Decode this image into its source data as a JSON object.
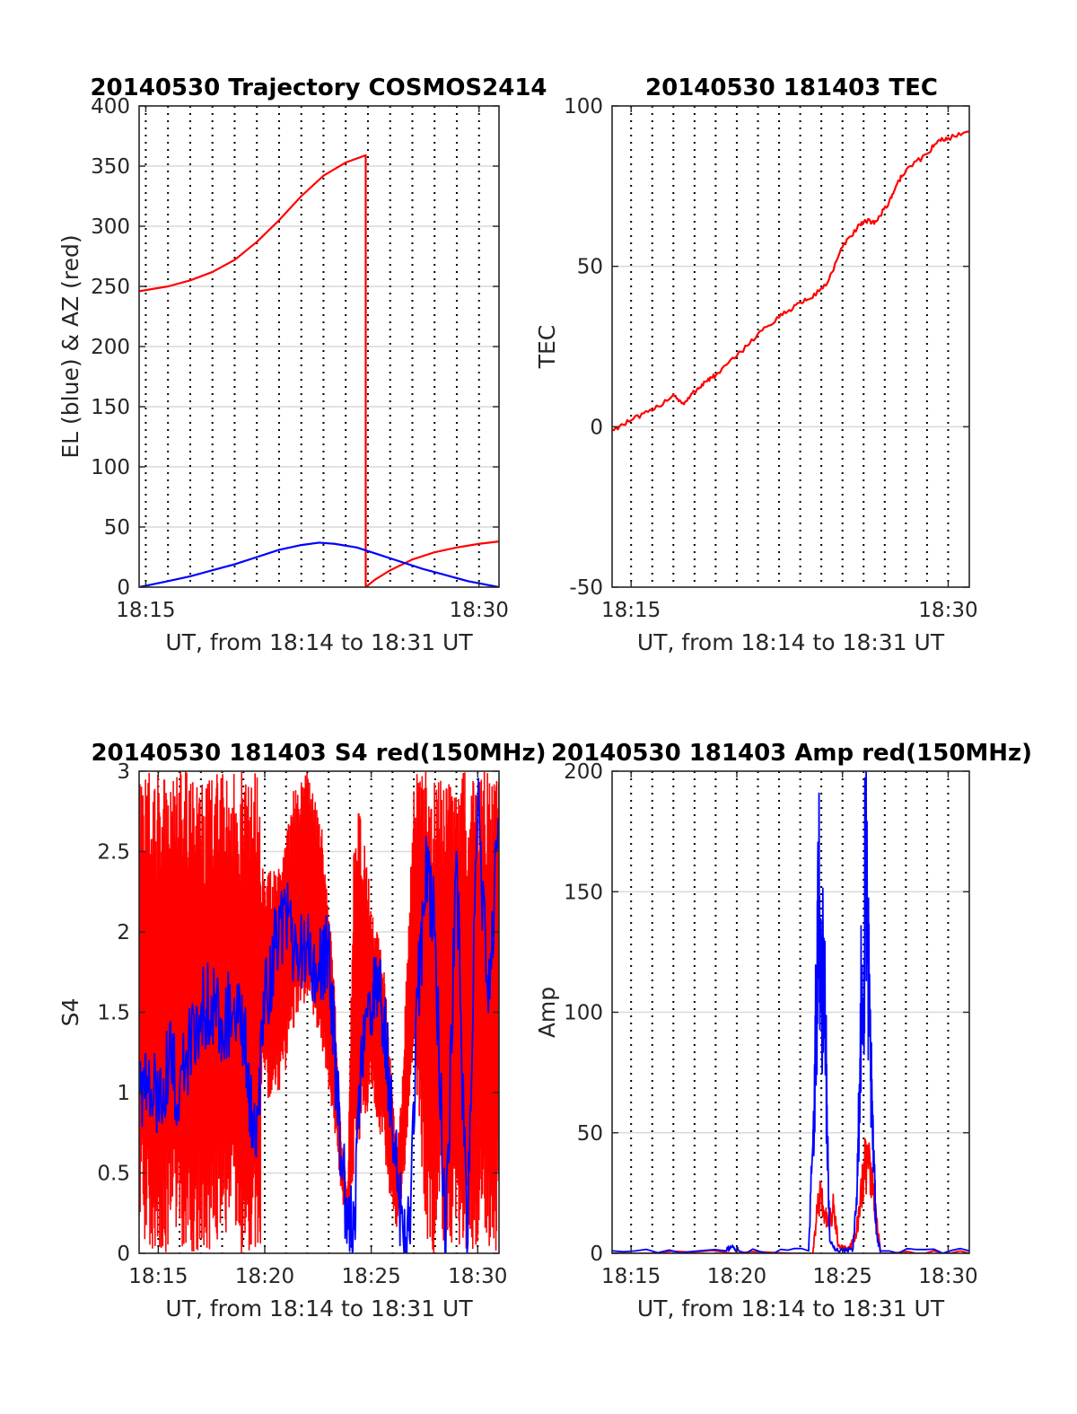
{
  "figure": {
    "colors": {
      "red": "#ff0000",
      "blue": "#0000ff",
      "grid": "#000000",
      "hgrid": "#d9d9d9"
    }
  },
  "chart_data": [
    {
      "id": "trajectory",
      "type": "line",
      "title": "20140530 Trajectory COSMOS2414",
      "xlabel": "UT, from 18:14 to 18:31 UT",
      "ylabel": "EL (blue) & AZ (red)",
      "xlim": [
        14.7,
        30.9
      ],
      "ylim": [
        0,
        400
      ],
      "xticks": [
        15,
        30
      ],
      "xticklabels": [
        "18:15",
        "18:30"
      ],
      "yticks": [
        0,
        50,
        100,
        150,
        200,
        250,
        300,
        350,
        400
      ],
      "yticklabels": [
        "0",
        "50",
        "100",
        "150",
        "200",
        "250",
        "300",
        "350",
        "400"
      ],
      "grid": true,
      "series": [
        {
          "color": "red",
          "x": [
            14.7,
            16,
            17,
            18,
            19,
            20,
            21,
            22,
            23,
            24,
            24.9,
            24.9,
            25.3,
            26,
            27,
            28,
            29,
            30,
            30.9
          ],
          "y": [
            246,
            250,
            255,
            262,
            272,
            287,
            305,
            325,
            342,
            353,
            359,
            0,
            6,
            14,
            23,
            29,
            33,
            36,
            38
          ]
        },
        {
          "color": "blue",
          "x": [
            14.7,
            16,
            17,
            18,
            19,
            20,
            21,
            22,
            22.8,
            23.5,
            24.5,
            25.5,
            26.5,
            27.5,
            28.5,
            29.5,
            30.9
          ],
          "y": [
            0,
            5,
            9,
            14,
            19,
            25,
            31,
            35,
            37,
            36,
            33,
            27,
            21,
            15,
            10,
            5,
            0
          ]
        }
      ]
    },
    {
      "id": "tec",
      "type": "line",
      "title": "20140530 181403 TEC",
      "xlabel": "UT, from 18:14 to 18:31 UT",
      "ylabel": "TEC",
      "xlim": [
        14.1,
        31.0
      ],
      "ylim": [
        -50,
        100
      ],
      "xticks": [
        15,
        30
      ],
      "xticklabels": [
        "18:15",
        "18:30"
      ],
      "yticks": [
        -50,
        0,
        50,
        100
      ],
      "yticklabels": [
        "-50",
        "0",
        "50",
        "100"
      ],
      "grid": true,
      "series": [
        {
          "color": "red",
          "x": [
            14.1,
            15,
            16,
            17,
            17.5,
            18,
            18.5,
            19,
            20,
            21,
            22,
            22.8,
            23.5,
            24.3,
            25,
            25.7,
            26.1,
            26.6,
            27.2,
            27.6,
            28,
            29,
            29.5,
            30,
            31
          ],
          "y": [
            -1,
            2,
            5,
            10,
            7,
            11,
            14,
            16,
            22,
            29,
            34,
            38,
            40,
            45,
            56,
            62,
            64,
            64,
            70,
            76,
            80,
            85,
            89,
            90,
            92
          ]
        }
      ]
    },
    {
      "id": "s4",
      "type": "line",
      "title": "20140530 181403 S4 red(150MHz)",
      "xlabel": "UT, from 18:14 to 18:31 UT",
      "ylabel": "S4",
      "xlim": [
        14.1,
        31.0
      ],
      "ylim": [
        0,
        3
      ],
      "xticks": [
        15,
        20,
        25,
        30
      ],
      "xticklabels": [
        "18:15",
        "18:20",
        "18:25",
        "18:30"
      ],
      "yticks": [
        0,
        0.5,
        1,
        1.5,
        2,
        2.5,
        3
      ],
      "yticklabels": [
        "0",
        "0.5",
        "1",
        "1.5",
        "2",
        "2.5",
        "3"
      ],
      "grid": true,
      "series": [
        {
          "color": "red",
          "band": true,
          "x": [
            14.1,
            19.8,
            19.8,
            20.7,
            21.3,
            22.0,
            22.8,
            23.3,
            23.6,
            23.9,
            24.2,
            24.6,
            25.0,
            25.3,
            25.6,
            25.9,
            26.2,
            26.5,
            27.0,
            27.6,
            28.2,
            28.8,
            29.4,
            30.0,
            30.6,
            31.0
          ],
          "lo": [
            0,
            0,
            0.9,
            1.0,
            1.3,
            1.6,
            1.2,
            0.7,
            0.35,
            0.15,
            0.5,
            0.7,
            1.0,
            0.8,
            0.6,
            0.3,
            0.15,
            0.4,
            1.2,
            0.0,
            0.0,
            0.0,
            0.0,
            0.0,
            0.0,
            0.0
          ],
          "hi": [
            3,
            3,
            2.4,
            2.4,
            2.9,
            3.0,
            2.6,
            1.6,
            0.7,
            0.4,
            2.8,
            2.7,
            2.2,
            2.0,
            1.8,
            1.2,
            0.6,
            1.2,
            3.0,
            3.0,
            3.0,
            3.0,
            3.0,
            3.0,
            3.0,
            3.0
          ]
        },
        {
          "color": "blue",
          "x": [
            14.1,
            14.5,
            15,
            15.5,
            16,
            16.5,
            17,
            17.5,
            18,
            18.5,
            19,
            19.3,
            19.6,
            20,
            20.5,
            21,
            21.5,
            22,
            22.5,
            23,
            23.3,
            23.6,
            23.9,
            24.2,
            24.5,
            25,
            25.3,
            25.6,
            25.9,
            26.2,
            26.5,
            26.8,
            27.2,
            27.6,
            28,
            28.5,
            29,
            29.5,
            30,
            30.5,
            31
          ],
          "y": [
            1.1,
            1.0,
            0.95,
            1.2,
            1.0,
            1.3,
            1.5,
            1.6,
            1.45,
            1.5,
            1.35,
            1.0,
            0.6,
            1.6,
            1.9,
            2.1,
            1.8,
            1.9,
            1.7,
            1.9,
            1.2,
            0.6,
            0.15,
            0.15,
            1.2,
            1.5,
            1.7,
            1.4,
            1.0,
            0.5,
            0.1,
            0.1,
            1.6,
            2.4,
            2.0,
            0.0,
            2.5,
            0.0,
            2.8,
            1.5,
            2.7
          ]
        }
      ]
    },
    {
      "id": "amp",
      "type": "line",
      "title": "20140530 181403 Amp red(150MHz)",
      "xlabel": "UT, from 18:14 to 18:31 UT",
      "ylabel": "Amp",
      "xlim": [
        14.1,
        31.0
      ],
      "ylim": [
        0,
        200
      ],
      "xticks": [
        15,
        20,
        25,
        30
      ],
      "xticklabels": [
        "18:15",
        "18:20",
        "18:25",
        "18:30"
      ],
      "yticks": [
        0,
        50,
        100,
        150,
        200
      ],
      "yticklabels": [
        "0",
        "50",
        "100",
        "150",
        "200"
      ],
      "grid": true,
      "series": [
        {
          "color": "red",
          "x": [
            14.1,
            23.6,
            23.8,
            24.0,
            24.2,
            24.4,
            24.6,
            24.8,
            25.2,
            25.4,
            25.6,
            25.8,
            26.0,
            26.2,
            26.4,
            26.6,
            26.8,
            31.0
          ],
          "y": [
            0,
            0,
            18,
            24,
            15,
            14,
            20,
            3,
            2,
            3,
            8,
            15,
            35,
            40,
            28,
            15,
            0,
            0
          ]
        },
        {
          "color": "blue",
          "x": [
            14.1,
            19.5,
            19.7,
            19.9,
            20.1,
            23.4,
            23.6,
            23.7,
            23.8,
            23.9,
            24.0,
            24.1,
            24.2,
            24.3,
            24.4,
            24.7,
            25.2,
            25.5,
            25.7,
            25.8,
            25.9,
            26.0,
            26.1,
            26.2,
            26.3,
            26.4,
            26.5,
            26.6,
            26.8,
            31.0
          ],
          "y": [
            1,
            1,
            3,
            2,
            1,
            1,
            45,
            80,
            110,
            155,
            100,
            130,
            90,
            40,
            5,
            1,
            1,
            2,
            30,
            70,
            110,
            100,
            178,
            120,
            90,
            60,
            35,
            8,
            1,
            1
          ]
        }
      ]
    }
  ]
}
